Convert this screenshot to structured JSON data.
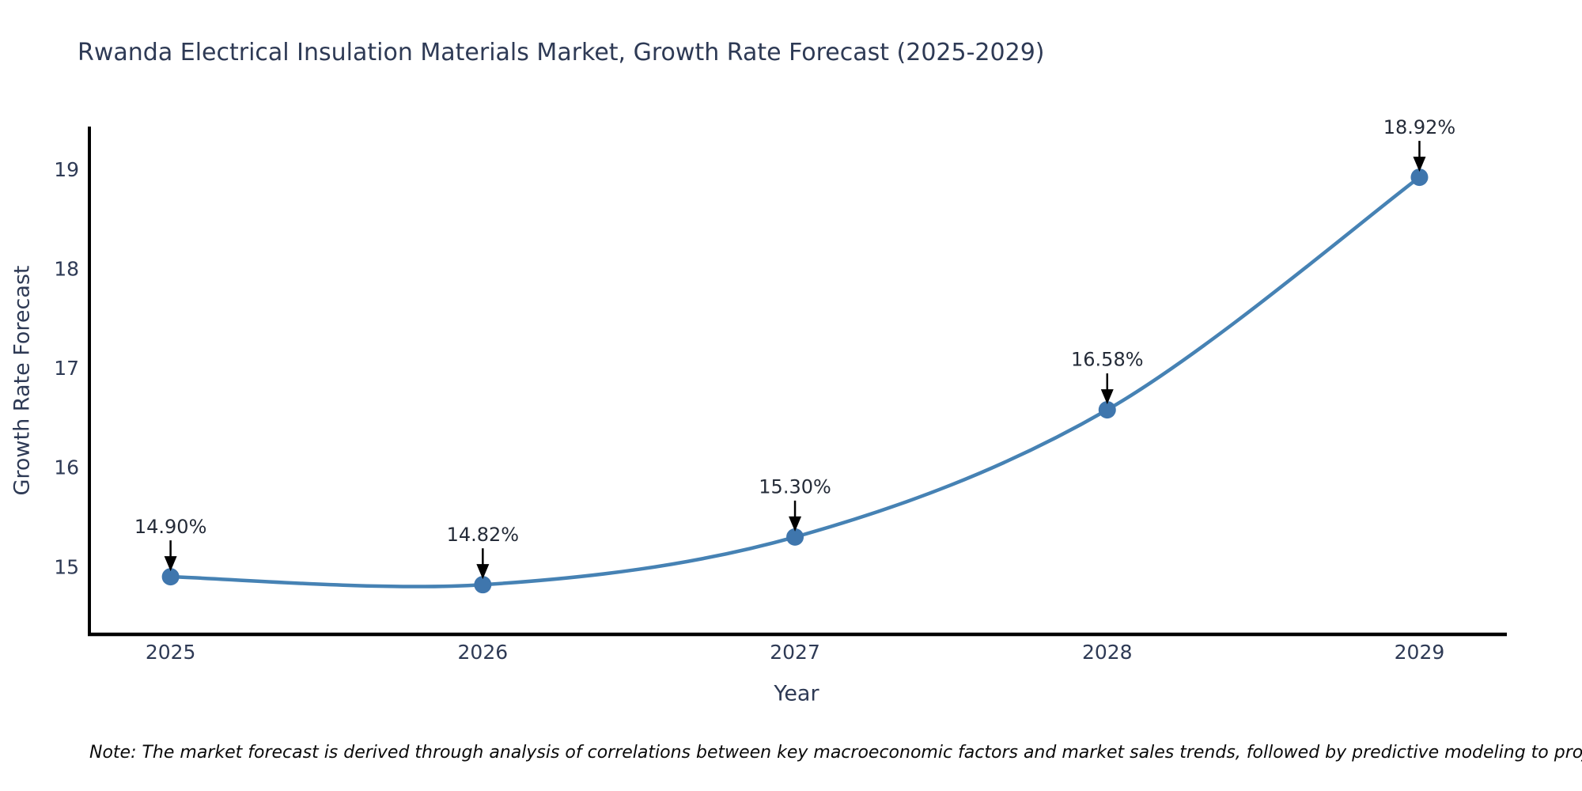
{
  "page": {
    "title": "Rwanda Electrical Insulation Materials Market, Growth Rate Forecast (2025-2029)",
    "note": "Note: The market forecast is derived through analysis of correlations between key macroeconomic factors and market sales trends, followed by predictive modeling to project future sales"
  },
  "chart_data": {
    "type": "line",
    "title": "Rwanda Electrical Insulation Materials Market, Growth Rate Forecast (2025-2029)",
    "xlabel": "Year",
    "ylabel": "Growth Rate Forecast",
    "categories": [
      "2025",
      "2026",
      "2027",
      "2028",
      "2029"
    ],
    "x_numeric": [
      2025,
      2026,
      2027,
      2028,
      2029
    ],
    "series": [
      {
        "name": "Growth Rate Forecast",
        "values": [
          14.9,
          14.82,
          15.3,
          16.58,
          18.92
        ],
        "point_labels": [
          "14.90%",
          "14.82%",
          "15.30%",
          "16.58%",
          "18.92%"
        ]
      }
    ],
    "yticks": [
      15,
      16,
      17,
      18,
      19
    ],
    "xticks": [
      "2025",
      "2026",
      "2027",
      "2028",
      "2029"
    ],
    "xlim": [
      2024.74,
      2029.28
    ],
    "ylim": [
      14.32,
      19.43
    ],
    "grid": false,
    "legend": "none",
    "annotations": "arrow-down-to-point",
    "colors": {
      "line": "#4682b4",
      "marker": "#3f76ad",
      "axis": "#000000",
      "tick_text": "#2e3a55",
      "annotation_text": "#242b38",
      "arrow": "#000000"
    }
  }
}
